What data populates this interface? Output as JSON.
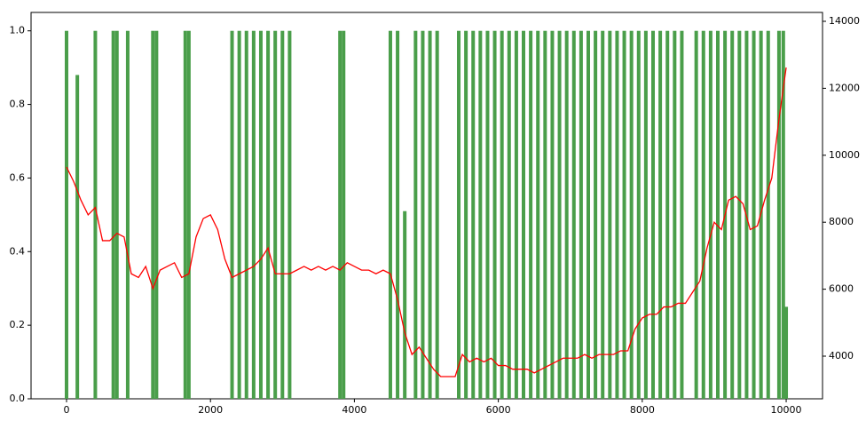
{
  "chart_data": {
    "type": "bar-line",
    "xlim": [
      -493,
      10505
    ],
    "ylim": [
      0,
      1.05
    ],
    "y2lim": [
      2727,
      14265
    ],
    "xticks": [
      0,
      2000,
      4000,
      6000,
      8000,
      10000
    ],
    "yticks": [
      {
        "value": 0,
        "label": "0.0"
      },
      0.2,
      0.4,
      0.6,
      0.8,
      {
        "value": 1,
        "label": "1.0"
      }
    ],
    "y2ticks": [
      4000,
      6000,
      8000,
      10000,
      12000,
      14000
    ],
    "series": [
      {
        "type": "bar",
        "color": "#4a9e4a",
        "x": [
          0,
          150,
          400,
          650,
          700,
          850,
          1200,
          1250,
          1650,
          1700,
          2300,
          2400,
          2500,
          2600,
          2700,
          2800,
          2900,
          3000,
          3100,
          3800,
          3850,
          4500,
          4600,
          4700,
          4850,
          4950,
          5050,
          5150,
          5450,
          5550,
          5650,
          5750,
          5850,
          5950,
          6050,
          6150,
          6250,
          6350,
          6450,
          6550,
          6650,
          6750,
          6850,
          6950,
          7050,
          7150,
          7250,
          7350,
          7450,
          7550,
          7650,
          7750,
          7850,
          7950,
          8050,
          8150,
          8250,
          8350,
          8450,
          8550,
          8750,
          8850,
          8950,
          9050,
          9150,
          9250,
          9350,
          9450,
          9550,
          9650,
          9750,
          9900,
          9960,
          10000
        ],
        "values": [
          1,
          0.88,
          1,
          1,
          1,
          1,
          1,
          1,
          1,
          1,
          1,
          1,
          1,
          1,
          1,
          1,
          1,
          1,
          1,
          1,
          1,
          1,
          1,
          0.51,
          1,
          1,
          1,
          1,
          1,
          1,
          1,
          1,
          1,
          1,
          1,
          1,
          1,
          1,
          1,
          1,
          1,
          1,
          1,
          1,
          1,
          1,
          1,
          1,
          1,
          1,
          1,
          1,
          1,
          1,
          1,
          1,
          1,
          1,
          1,
          1,
          1,
          1,
          1,
          1,
          1,
          1,
          1,
          1,
          1,
          1,
          1,
          1,
          1,
          0.25
        ]
      },
      {
        "type": "line",
        "axis": "y2",
        "color": "#ff0000",
        "x": [
          0,
          100,
          200,
          300,
          400,
          500,
          600,
          700,
          800,
          900,
          1000,
          1100,
          1200,
          1300,
          1400,
          1500,
          1600,
          1700,
          1800,
          1900,
          2000,
          2100,
          2200,
          2300,
          2400,
          2500,
          2600,
          2700,
          2800,
          2900,
          3000,
          3100,
          3200,
          3300,
          3400,
          3500,
          3600,
          3700,
          3800,
          3900,
          4000,
          4100,
          4200,
          4300,
          4400,
          4500,
          4600,
          4700,
          4800,
          4900,
          5000,
          5100,
          5200,
          5300,
          5400,
          5500,
          5600,
          5700,
          5800,
          5900,
          6000,
          6100,
          6200,
          6300,
          6400,
          6500,
          6600,
          6700,
          6800,
          6900,
          7000,
          7100,
          7200,
          7300,
          7400,
          7500,
          7600,
          7700,
          7800,
          7900,
          8000,
          8100,
          8200,
          8300,
          8400,
          8500,
          8600,
          8700,
          8800,
          8900,
          9000,
          9100,
          9200,
          9300,
          9400,
          9500,
          9600,
          9700,
          9800,
          9900,
          10000
        ],
        "values": [
          9650,
          9210,
          8660,
          8220,
          8440,
          7450,
          7450,
          7670,
          7560,
          6460,
          6350,
          6680,
          6020,
          6570,
          6680,
          6790,
          6350,
          6460,
          7560,
          8110,
          8220,
          7780,
          6900,
          6350,
          6460,
          6570,
          6680,
          6900,
          7230,
          6460,
          6460,
          6460,
          6570,
          6680,
          6570,
          6680,
          6570,
          6680,
          6570,
          6790,
          6680,
          6570,
          6570,
          6460,
          6570,
          6460,
          5690,
          4700,
          4050,
          4270,
          3940,
          3610,
          3390,
          3390,
          3390,
          4050,
          3830,
          3940,
          3830,
          3940,
          3720,
          3720,
          3610,
          3610,
          3610,
          3500,
          3610,
          3720,
          3830,
          3940,
          3940,
          3940,
          4050,
          3940,
          4050,
          4050,
          4050,
          4160,
          4160,
          4810,
          5140,
          5250,
          5250,
          5470,
          5470,
          5580,
          5580,
          5910,
          6240,
          7230,
          8000,
          7780,
          8660,
          8770,
          8550,
          7780,
          7890,
          8660,
          9320,
          11080,
          12620
        ]
      }
    ]
  }
}
